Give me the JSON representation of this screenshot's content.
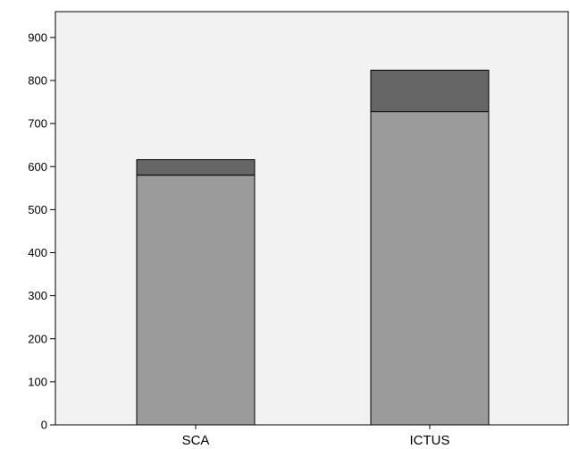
{
  "chart_data": {
    "type": "bar",
    "stacked": true,
    "categories": [
      "SCA",
      "ICTUS"
    ],
    "series": [
      {
        "values": [
          580,
          728
        ],
        "color": "#9b9b9b"
      },
      {
        "values": [
          36,
          96
        ],
        "color": "#666666"
      }
    ],
    "ylim": [
      0,
      960
    ],
    "yticks": [
      0,
      100,
      200,
      300,
      400,
      500,
      600,
      700,
      800,
      900
    ],
    "grid": false,
    "plot_background": "#f2f2f2"
  }
}
